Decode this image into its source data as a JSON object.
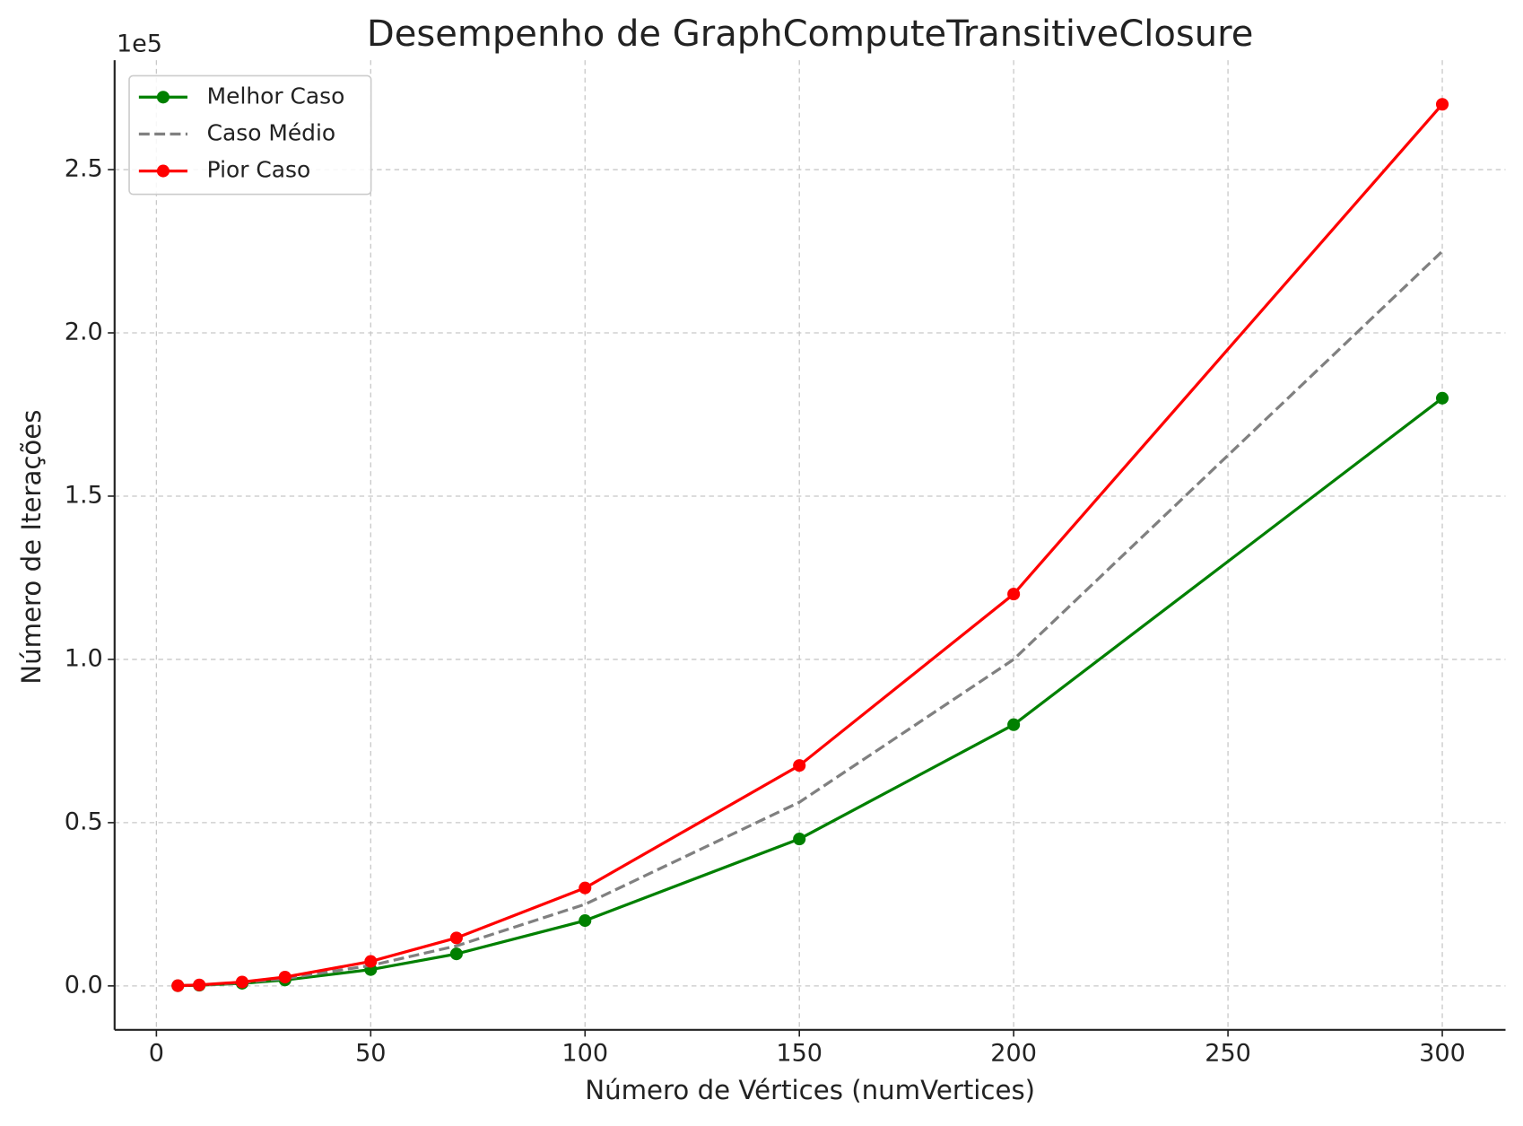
{
  "chart_data": {
    "type": "line",
    "title": "Desempenho de GraphComputeTransitiveClosure",
    "xlabel": "Número de Vértices (numVertices)",
    "ylabel": "Número de Iterações",
    "y_offset_label": "1e5",
    "x": [
      5,
      10,
      20,
      30,
      50,
      70,
      100,
      150,
      200,
      300
    ],
    "series": [
      {
        "name": "Melhor Caso",
        "color": "#008000",
        "linestyle": "solid",
        "marker": "o",
        "values": [
          50,
          200,
          800,
          1800,
          5000,
          9800,
          20000,
          45000,
          80000,
          180000
        ]
      },
      {
        "name": "Caso Médio",
        "color": "#808080",
        "linestyle": "dashed",
        "values": [
          62.5,
          250,
          1000,
          2250,
          6250,
          12250,
          25000,
          56250,
          100000,
          225000
        ]
      },
      {
        "name": "Pior Caso",
        "color": "#ff0000",
        "linestyle": "solid",
        "marker": "o",
        "values": [
          75,
          300,
          1200,
          2700,
          7500,
          14700,
          30000,
          67500,
          120000,
          270000
        ]
      }
    ],
    "xlim": [
      -9.75,
      314.75
    ],
    "ylim": [
      -13447.5,
      283497.5
    ],
    "xticks": [
      0,
      50,
      100,
      150,
      200,
      250,
      300
    ],
    "yticks": [
      {
        "value": 0,
        "label": "0.0"
      },
      {
        "value": 50000,
        "label": "0.5"
      },
      {
        "value": 100000,
        "label": "1.0"
      },
      {
        "value": 150000,
        "label": "1.5"
      },
      {
        "value": 200000,
        "label": "2.0"
      },
      {
        "value": 250000,
        "label": "2.5"
      }
    ],
    "grid": true,
    "legend": "upper-left"
  }
}
